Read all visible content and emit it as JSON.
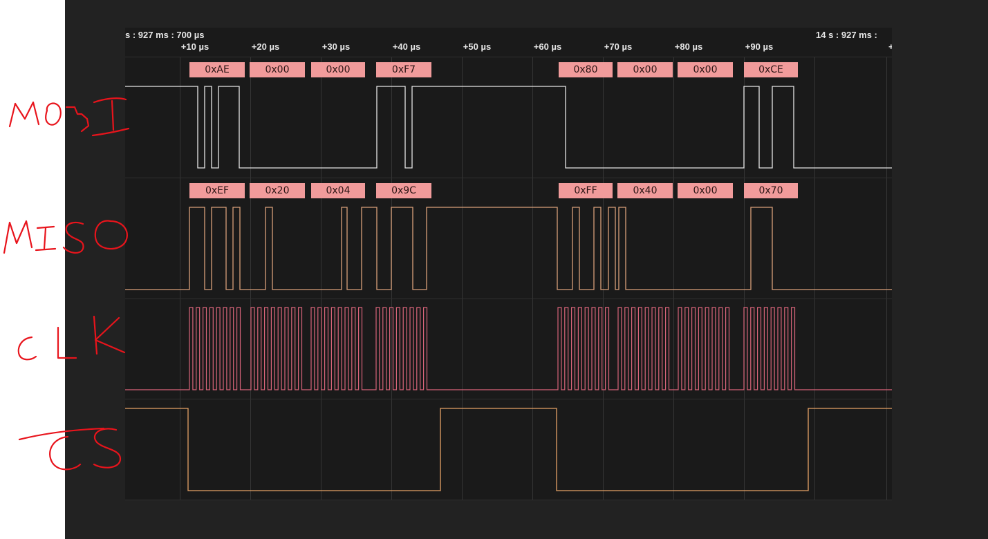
{
  "timebar": {
    "left_timestamp": "s : 927 ms : 700 µs",
    "right_timestamp": "14 s : 927 ms : ",
    "right_tick_partial": "+",
    "ticks": [
      "+10 µs",
      "+20 µs",
      "+30 µs",
      "+40 µs",
      "+50 µs",
      "+60 µs",
      "+70 µs",
      "+80 µs",
      "+90 µs"
    ]
  },
  "channels": [
    {
      "name": "MOSI",
      "color": "#e6e6e6",
      "bytes": [
        "0xAE",
        "0x00",
        "0x00",
        "0xF7",
        "0x80",
        "0x00",
        "0x00",
        "0xCE"
      ]
    },
    {
      "name": "MISO",
      "color": "#d9a07a",
      "bytes": [
        "0xEF",
        "0x20",
        "0x04",
        "0x9C",
        "0xFF",
        "0x40",
        "0x00",
        "0x70"
      ]
    },
    {
      "name": "CLK",
      "color": "#d9657a",
      "bytes": []
    },
    {
      "name": "CS",
      "color": "#e5a266",
      "bytes": []
    }
  ],
  "annotations": [
    "MOSI",
    "MISO",
    "CLK",
    "CS"
  ],
  "colors": {
    "app_background": "#222222",
    "viewer_background": "#1a1a1a",
    "badge_background": "#f19b9b",
    "annotation_ink": "#e8141c"
  }
}
